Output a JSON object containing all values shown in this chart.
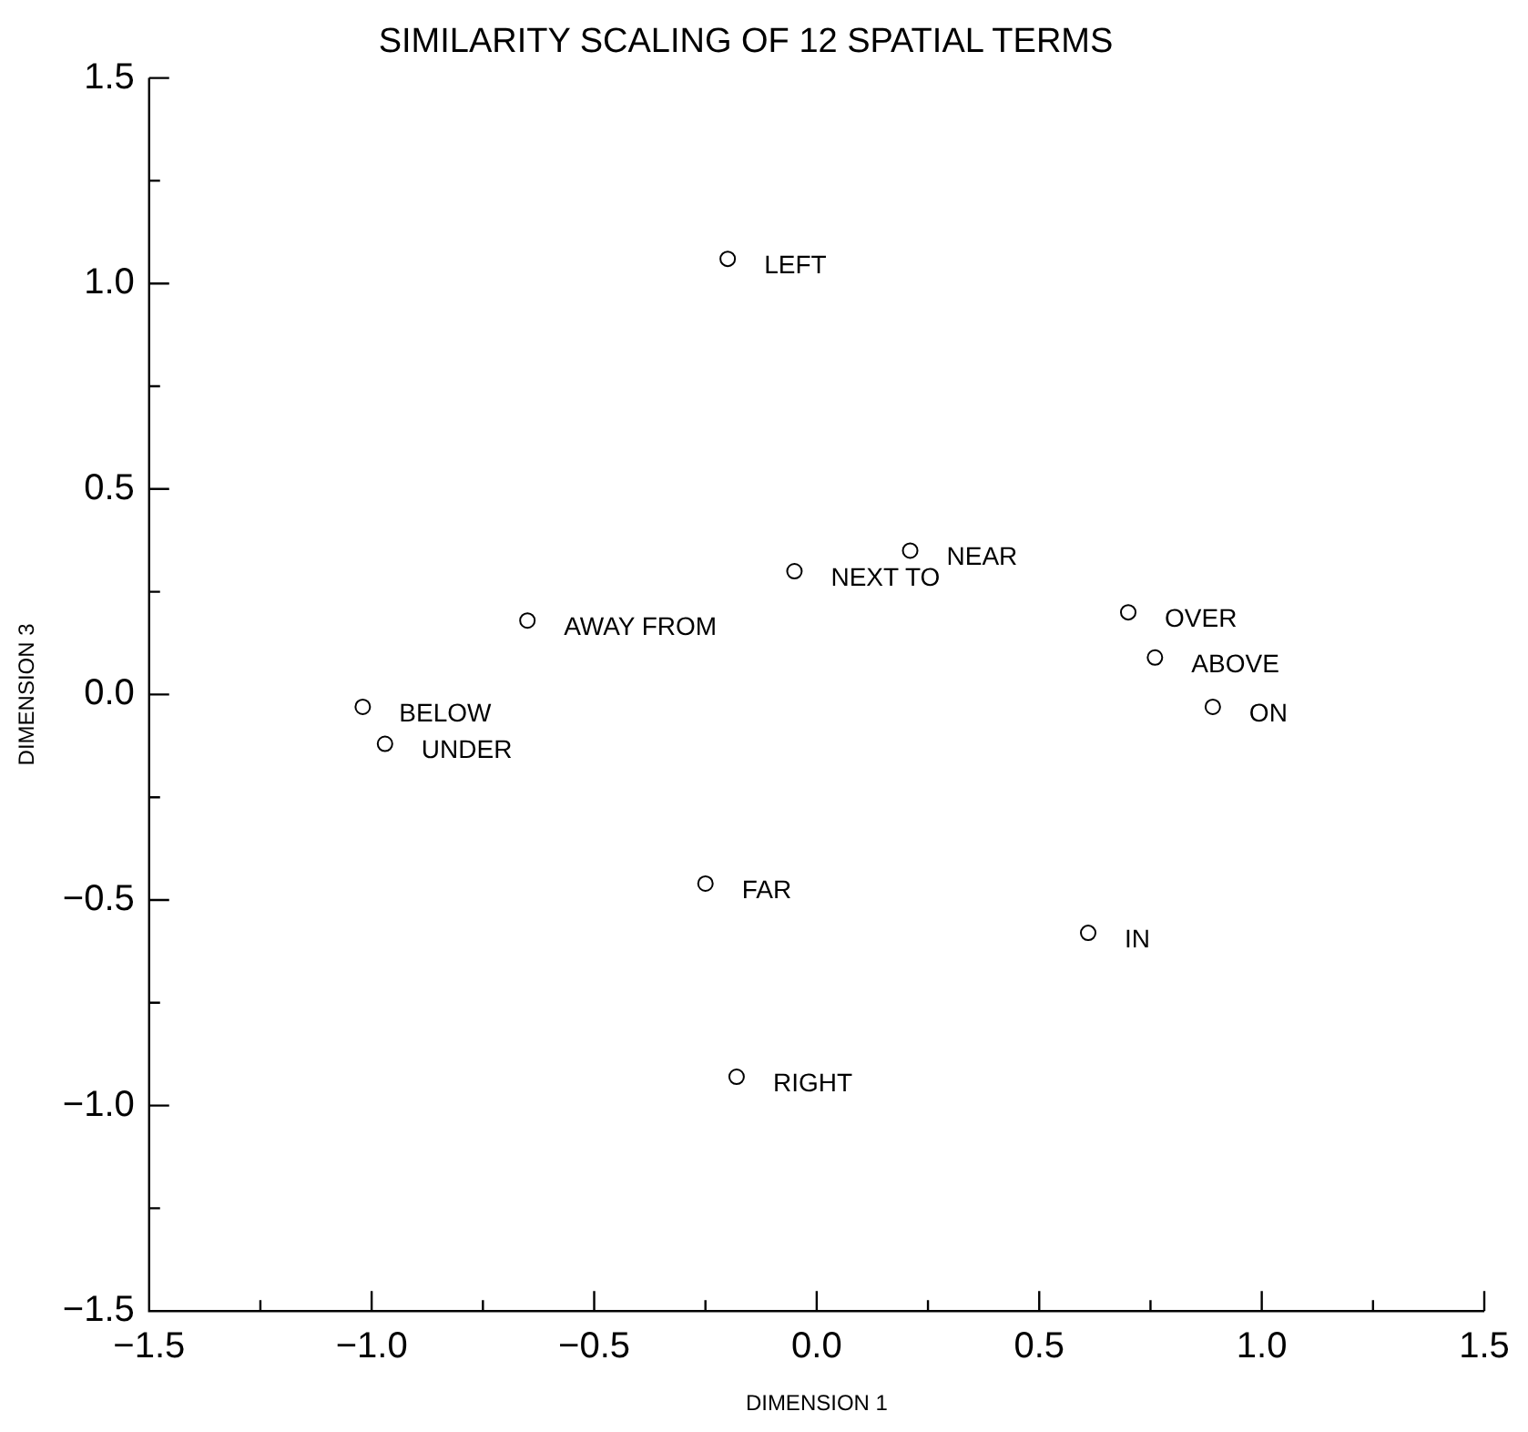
{
  "chart_data": {
    "type": "scatter",
    "title": "SIMILARITY SCALING OF 12 SPATIAL TERMS",
    "xlabel": "DIMENSION 1",
    "ylabel": "DIMENSION 3",
    "series": [
      {
        "color": "#000000",
        "x": [
          -0.2,
          -0.05,
          0.21,
          -0.65,
          0.7,
          0.76,
          0.89,
          -1.02,
          -0.97,
          -0.25,
          0.61,
          -0.18
        ],
        "values": [
          1.06,
          0.3,
          0.35,
          0.18,
          0.2,
          0.09,
          -0.03,
          -0.03,
          -0.12,
          -0.46,
          -0.58,
          -0.93
        ]
      }
    ],
    "annotations": [
      {
        "text": "LEFT",
        "x": -0.2,
        "y": 1.06
      },
      {
        "text": "NEXT TO",
        "x": -0.05,
        "y": 0.3
      },
      {
        "text": "NEAR",
        "x": 0.21,
        "y": 0.35
      },
      {
        "text": "AWAY FROM",
        "x": -0.65,
        "y": 0.18
      },
      {
        "text": "OVER",
        "x": 0.7,
        "y": 0.2
      },
      {
        "text": "ABOVE",
        "x": 0.76,
        "y": 0.09
      },
      {
        "text": "ON",
        "x": 0.89,
        "y": -0.03
      },
      {
        "text": "BELOW",
        "x": -1.02,
        "y": -0.03
      },
      {
        "text": "UNDER",
        "x": -0.97,
        "y": -0.12
      },
      {
        "text": "FAR",
        "x": -0.25,
        "y": -0.46
      },
      {
        "text": "IN",
        "x": 0.61,
        "y": -0.58
      },
      {
        "text": "RIGHT",
        "x": -0.18,
        "y": -0.93
      }
    ],
    "marker": "circle",
    "grid": false,
    "legend": false,
    "xlim": [
      -1.5,
      1.5
    ],
    "ylim": [
      -1.5,
      1.5
    ],
    "xticks": [
      {
        "value": -1.5,
        "label": "−1.5"
      },
      {
        "value": -1.25,
        "label": null
      },
      {
        "value": -1,
        "label": "−1.0"
      },
      {
        "value": -0.75,
        "label": null
      },
      {
        "value": -0.5,
        "label": "−0.5"
      },
      {
        "value": -0.25,
        "label": null
      },
      {
        "value": 0,
        "label": "0.0"
      },
      {
        "value": 0.25,
        "label": null
      },
      {
        "value": 0.5,
        "label": "0.5"
      },
      {
        "value": 0.75,
        "label": null
      },
      {
        "value": 1,
        "label": "1.0"
      },
      {
        "value": 1.25,
        "label": null
      },
      {
        "value": 1.5,
        "label": "1.5"
      }
    ],
    "yticks": [
      {
        "value": -1.5,
        "label": "−1.5"
      },
      {
        "value": -1.25,
        "label": null
      },
      {
        "value": -1,
        "label": "−1.0"
      },
      {
        "value": -0.75,
        "label": null
      },
      {
        "value": -0.5,
        "label": "−0.5"
      },
      {
        "value": -0.25,
        "label": null
      },
      {
        "value": 0,
        "label": "0.0"
      },
      {
        "value": 0.25,
        "label": null
      },
      {
        "value": 0.5,
        "label": "0.5"
      },
      {
        "value": 0.75,
        "label": null
      },
      {
        "value": 1,
        "label": "1.0"
      },
      {
        "value": 1.25,
        "label": null
      },
      {
        "value": 1.5,
        "label": "1.5"
      }
    ]
  }
}
